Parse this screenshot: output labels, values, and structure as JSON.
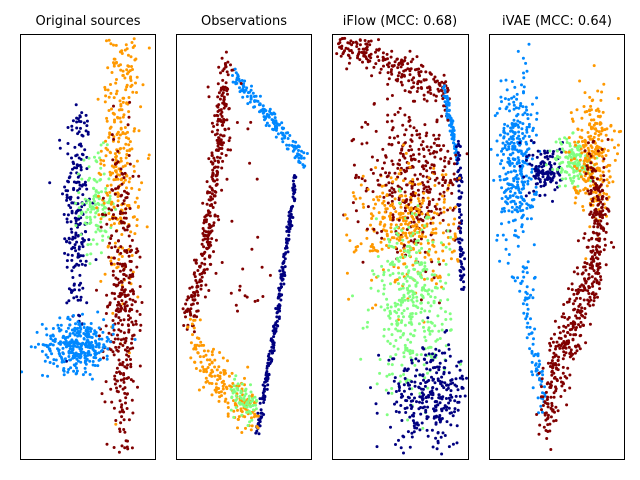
{
  "chart_data": [
    {
      "type": "scatter",
      "title": "Original sources",
      "xaxis": {
        "ticks": "none"
      },
      "yaxis": {
        "ticks": "none"
      },
      "series": [
        {
          "color": "#000080",
          "cluster": {
            "cx": 0.42,
            "cy": 0.58,
            "sx": 0.05,
            "sy": 0.15,
            "n": 220
          }
        },
        {
          "color": "#80ff80",
          "cluster": {
            "cx": 0.56,
            "cy": 0.6,
            "sx": 0.06,
            "sy": 0.06,
            "n": 120
          }
        },
        {
          "color": "#ff9900",
          "cluster": {
            "cx": 0.74,
            "cy": 0.74,
            "sx": 0.07,
            "sy": 0.17,
            "n": 320
          }
        },
        {
          "color": "#800000",
          "cluster": {
            "cx": 0.75,
            "cy": 0.35,
            "sx": 0.06,
            "sy": 0.2,
            "n": 360
          }
        },
        {
          "color": "#0088ff",
          "cluster": {
            "cx": 0.43,
            "cy": 0.27,
            "sx": 0.13,
            "sy": 0.03,
            "n": 320
          }
        }
      ]
    },
    {
      "type": "scatter",
      "title": "Observations",
      "xaxis": {
        "ticks": "none"
      },
      "yaxis": {
        "ticks": "none"
      },
      "series": [
        {
          "color": "#800000",
          "path": [
            [
              0.38,
              0.93
            ],
            [
              0.3,
              0.7
            ],
            [
              0.2,
              0.45
            ],
            [
              0.08,
              0.33
            ]
          ],
          "noise": 0.025,
          "n": 320
        },
        {
          "color": "#0088ff",
          "path": [
            [
              0.42,
              0.9
            ],
            [
              0.7,
              0.8
            ],
            [
              0.95,
              0.7
            ]
          ],
          "noise": 0.012,
          "n": 160
        },
        {
          "color": "#000080",
          "path": [
            [
              0.88,
              0.67
            ],
            [
              0.74,
              0.33
            ],
            [
              0.6,
              0.07
            ]
          ],
          "noise": 0.008,
          "n": 240
        },
        {
          "color": "#ff9900",
          "path": [
            [
              0.1,
              0.28
            ],
            [
              0.3,
              0.2
            ],
            [
              0.5,
              0.12
            ],
            [
              0.6,
              0.08
            ]
          ],
          "noise": 0.03,
          "n": 180
        },
        {
          "color": "#80ff80",
          "path": [
            [
              0.38,
              0.17
            ],
            [
              0.58,
              0.12
            ]
          ],
          "noise": 0.02,
          "n": 70
        },
        {
          "color": "#800000",
          "scatter": {
            "x": [
              0.18,
              0.7
            ],
            "y": [
              0.3,
              0.9
            ]
          },
          "n": 40
        }
      ]
    },
    {
      "type": "scatter",
      "title": "iFlow (MCC: 0.68)",
      "xaxis": {
        "ticks": "none"
      },
      "yaxis": {
        "ticks": "none"
      },
      "series": [
        {
          "color": "#800000",
          "path": [
            [
              0.05,
              0.98
            ],
            [
              0.5,
              0.92
            ],
            [
              0.85,
              0.86
            ]
          ],
          "noise": 0.02,
          "n": 220
        },
        {
          "color": "#0088ff",
          "path": [
            [
              0.82,
              0.87
            ],
            [
              0.92,
              0.7
            ]
          ],
          "noise": 0.008,
          "n": 90
        },
        {
          "color": "#000080",
          "path": [
            [
              0.92,
              0.75
            ],
            [
              0.95,
              0.4
            ]
          ],
          "noise": 0.01,
          "n": 80
        },
        {
          "color": "#800000",
          "cluster": {
            "cx": 0.62,
            "cy": 0.65,
            "sx": 0.16,
            "sy": 0.08,
            "n": 300
          }
        },
        {
          "color": "#ff9900",
          "cluster": {
            "cx": 0.55,
            "cy": 0.55,
            "sx": 0.18,
            "sy": 0.07,
            "n": 320
          }
        },
        {
          "color": "#80ff80",
          "cluster": {
            "cx": 0.58,
            "cy": 0.36,
            "sx": 0.14,
            "sy": 0.1,
            "n": 360
          }
        },
        {
          "color": "#000080",
          "cluster": {
            "cx": 0.72,
            "cy": 0.15,
            "sx": 0.15,
            "sy": 0.06,
            "n": 300
          }
        },
        {
          "color": "#800000",
          "scatter": {
            "x": [
              0.15,
              0.85
            ],
            "y": [
              0.5,
              0.9
            ]
          },
          "n": 70
        }
      ]
    },
    {
      "type": "scatter",
      "title": "iVAE (MCC: 0.64)",
      "xaxis": {
        "ticks": "none"
      },
      "yaxis": {
        "ticks": "none"
      },
      "series": [
        {
          "color": "#0088ff",
          "cluster": {
            "cx": 0.2,
            "cy": 0.7,
            "sx": 0.07,
            "sy": 0.1,
            "n": 340
          }
        },
        {
          "color": "#0088ff",
          "path": [
            [
              0.25,
              0.45
            ],
            [
              0.35,
              0.2
            ],
            [
              0.4,
              0.13
            ]
          ],
          "noise": 0.025,
          "n": 80
        },
        {
          "color": "#000080",
          "cluster": {
            "cx": 0.42,
            "cy": 0.68,
            "sx": 0.06,
            "sy": 0.03,
            "n": 130
          }
        },
        {
          "color": "#80ff80",
          "cluster": {
            "cx": 0.62,
            "cy": 0.7,
            "sx": 0.07,
            "sy": 0.03,
            "n": 140
          }
        },
        {
          "color": "#ff9900",
          "cluster": {
            "cx": 0.76,
            "cy": 0.72,
            "sx": 0.07,
            "sy": 0.07,
            "n": 260
          }
        },
        {
          "color": "#800000",
          "path": [
            [
              0.78,
              0.7
            ],
            [
              0.82,
              0.5
            ],
            [
              0.65,
              0.35
            ],
            [
              0.48,
              0.2
            ],
            [
              0.42,
              0.06
            ]
          ],
          "noise": 0.04,
          "n": 480
        }
      ]
    }
  ]
}
